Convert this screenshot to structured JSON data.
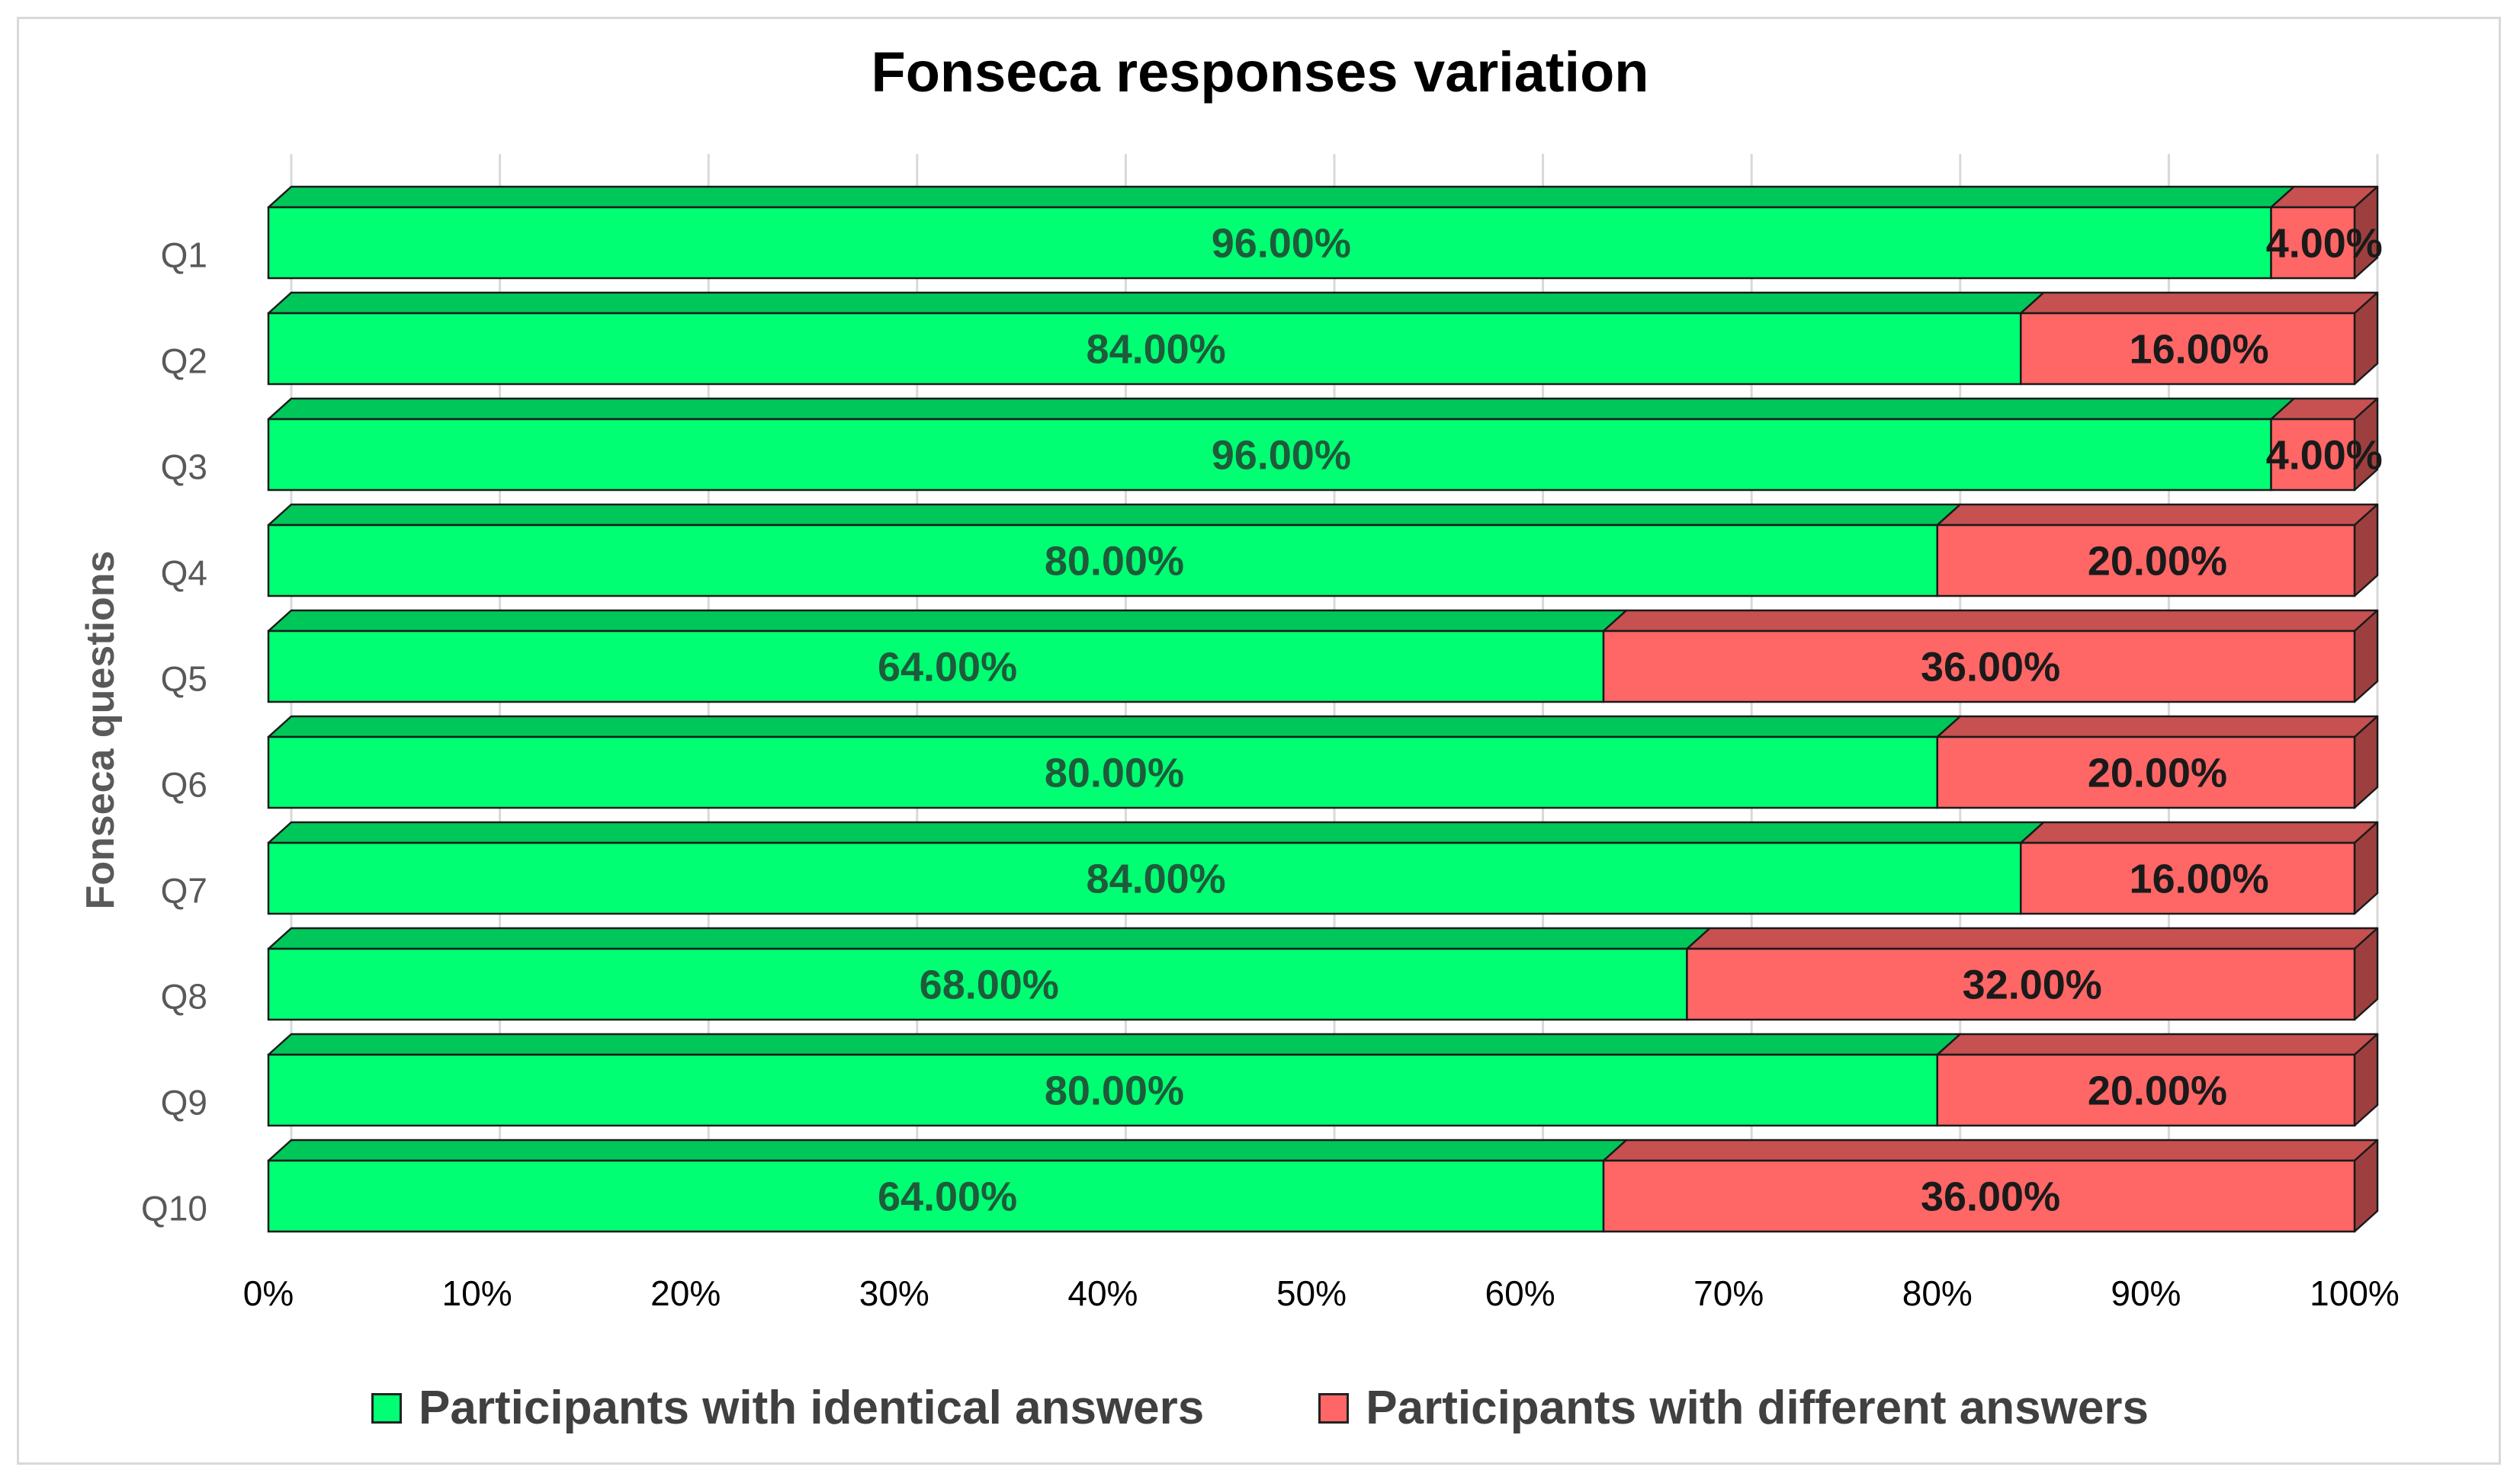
{
  "chart_data": {
    "type": "bar",
    "orientation": "horizontal",
    "stacked": true,
    "percent_stacked": true,
    "three_d": true,
    "title": "Fonseca responses variation",
    "xlabel": "",
    "ylabel": "Fonseca questions",
    "categories": [
      "Q1",
      "Q2",
      "Q3",
      "Q4",
      "Q5",
      "Q6",
      "Q7",
      "Q8",
      "Q9",
      "Q10"
    ],
    "x_ticks": [
      "0%",
      "10%",
      "20%",
      "30%",
      "40%",
      "50%",
      "60%",
      "70%",
      "80%",
      "90%",
      "100%"
    ],
    "xlim": [
      0,
      100
    ],
    "grid": true,
    "legend_position": "bottom",
    "series": [
      {
        "name": "Participants with identical answers",
        "color": "#00ff73",
        "values": [
          96,
          84,
          96,
          80,
          64,
          80,
          84,
          68,
          80,
          64
        ],
        "labels": [
          "96.00%",
          "84.00%",
          "96.00%",
          "80.00%",
          "64.00%",
          "80.00%",
          "84.00%",
          "68.00%",
          "80.00%",
          "64.00%"
        ]
      },
      {
        "name": "Participants with different answers",
        "color": "#ff6666",
        "values": [
          4,
          16,
          4,
          20,
          36,
          20,
          16,
          32,
          20,
          36
        ],
        "labels": [
          "4.00%",
          "16.00%",
          "4.00%",
          "20.00%",
          "36.00%",
          "20.00%",
          "16.00%",
          "32.00%",
          "20.00%",
          "36.00%"
        ]
      }
    ]
  }
}
